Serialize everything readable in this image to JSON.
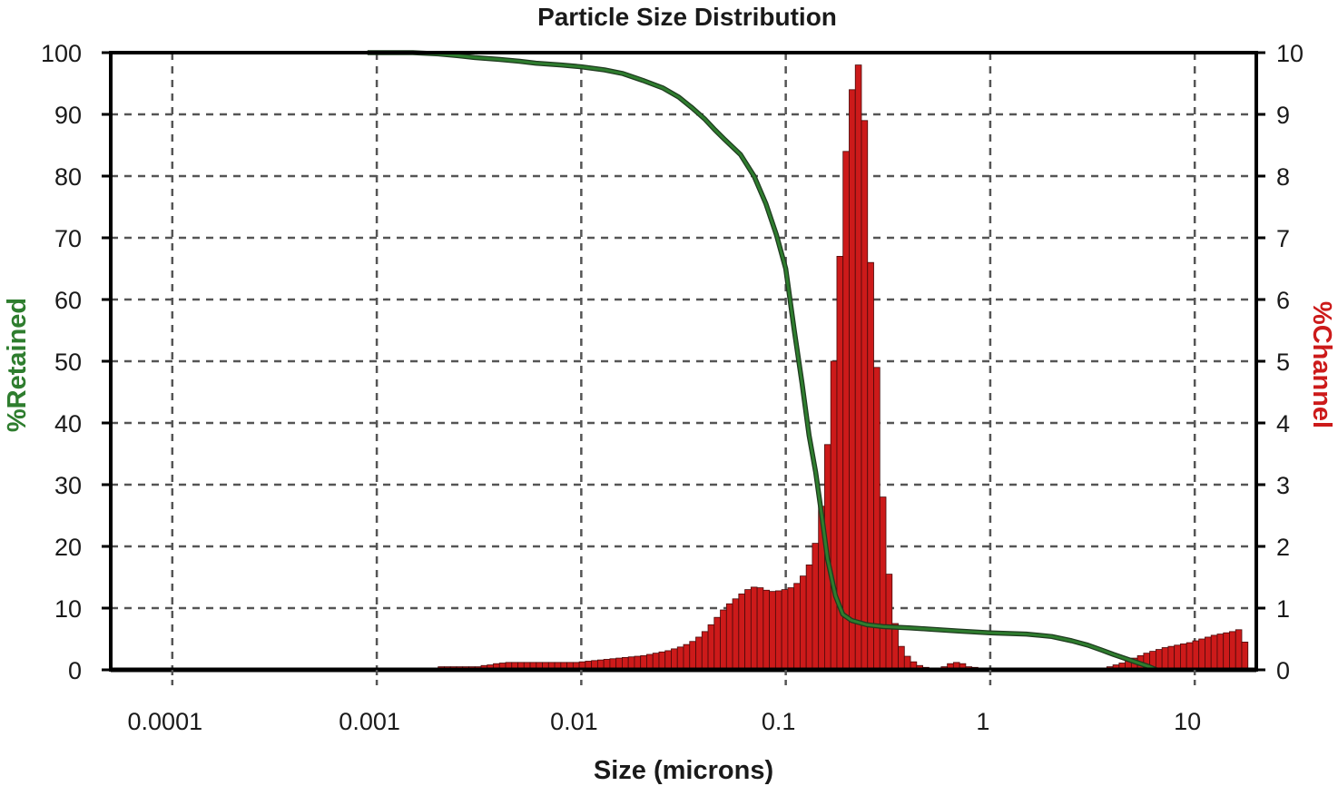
{
  "chart_data": {
    "type": "bar",
    "title": "Particle Size Distribution",
    "xlabel": "Size (microns)",
    "ylabel_left": "%Retained",
    "ylabel_right": "%Channel",
    "x_scale": "log",
    "xlim": [
      5e-05,
      20
    ],
    "ylim_left": [
      0,
      100
    ],
    "ylim_right": [
      0,
      10
    ],
    "x_ticks": [
      {
        "value": 0.0001,
        "label": "0.0001"
      },
      {
        "value": 0.001,
        "label": "0.001"
      },
      {
        "value": 0.01,
        "label": "0.01"
      },
      {
        "value": 0.1,
        "label": "0.1"
      },
      {
        "value": 1,
        "label": "1"
      },
      {
        "value": 10,
        "label": "10"
      }
    ],
    "y_left_ticks": [
      {
        "value": 0,
        "label": "0"
      },
      {
        "value": 10,
        "label": "10"
      },
      {
        "value": 20,
        "label": "20"
      },
      {
        "value": 30,
        "label": "30"
      },
      {
        "value": 40,
        "label": "40"
      },
      {
        "value": 50,
        "label": "50"
      },
      {
        "value": 60,
        "label": "60"
      },
      {
        "value": 70,
        "label": "70"
      },
      {
        "value": 80,
        "label": "80"
      },
      {
        "value": 90,
        "label": "90"
      },
      {
        "value": 100,
        "label": "100"
      }
    ],
    "y_right_ticks": [
      {
        "value": 0,
        "label": "0"
      },
      {
        "value": 1,
        "label": "1"
      },
      {
        "value": 2,
        "label": "2"
      },
      {
        "value": 3,
        "label": "3"
      },
      {
        "value": 4,
        "label": "4"
      },
      {
        "value": 5,
        "label": "5"
      },
      {
        "value": 6,
        "label": "6"
      },
      {
        "value": 7,
        "label": "7"
      },
      {
        "value": 8,
        "label": "8"
      },
      {
        "value": 9,
        "label": "9"
      },
      {
        "value": 10,
        "label": "10"
      }
    ],
    "grid": true,
    "colors": {
      "channel_bars": "#cc1a1a",
      "retained_line": "#2e7d2e",
      "left_axis_label": "#2e7d2e",
      "right_axis_label": "#cc1a1a"
    },
    "series": [
      {
        "axis": "right",
        "type": "bar",
        "x_log10_start": -3.0,
        "x_log10_step": 0.03,
        "values": [
          0.01,
          0.01,
          0.01,
          0.01,
          0.02,
          0.02,
          0.03,
          0.03,
          0.03,
          0.03,
          0.05,
          0.05,
          0.05,
          0.05,
          0.05,
          0.05,
          0.05,
          0.07,
          0.08,
          0.1,
          0.11,
          0.12,
          0.12,
          0.12,
          0.12,
          0.12,
          0.12,
          0.12,
          0.12,
          0.12,
          0.12,
          0.12,
          0.12,
          0.13,
          0.14,
          0.15,
          0.16,
          0.17,
          0.18,
          0.19,
          0.2,
          0.21,
          0.22,
          0.23,
          0.25,
          0.27,
          0.29,
          0.31,
          0.34,
          0.37,
          0.41,
          0.46,
          0.53,
          0.62,
          0.73,
          0.85,
          0.97,
          1.07,
          1.15,
          1.23,
          1.3,
          1.34,
          1.33,
          1.29,
          1.27,
          1.28,
          1.3,
          1.33,
          1.4,
          1.52,
          1.7,
          2.05,
          2.65,
          3.65,
          5.0,
          6.7,
          8.4,
          9.4,
          9.8,
          8.9,
          6.6,
          4.9,
          2.8,
          1.55,
          0.75,
          0.38,
          0.22,
          0.13,
          0.07,
          0.04,
          0.02,
          0.02,
          0.05,
          0.1,
          0.12,
          0.1,
          0.05,
          0.04,
          0.03,
          0.02,
          0.02,
          0.02,
          0.02,
          0.02,
          0.02,
          0.02,
          0.02,
          0.02,
          0.02,
          0.02,
          0.02,
          0.02,
          0.02,
          0.02,
          0.02,
          0.02,
          0.02,
          0.02,
          0.03,
          0.05,
          0.08,
          0.11,
          0.15,
          0.19,
          0.23,
          0.27,
          0.3,
          0.33,
          0.36,
          0.38,
          0.4,
          0.42,
          0.44,
          0.47,
          0.5,
          0.53,
          0.56,
          0.58,
          0.6,
          0.62,
          0.65,
          0.45,
          0.01
        ]
      },
      {
        "axis": "left",
        "type": "line",
        "points": [
          [
            0.0009,
            100
          ],
          [
            0.0015,
            100
          ],
          [
            0.002,
            99.8
          ],
          [
            0.0025,
            99.5
          ],
          [
            0.003,
            99.2
          ],
          [
            0.004,
            98.9
          ],
          [
            0.005,
            98.6
          ],
          [
            0.006,
            98.3
          ],
          [
            0.008,
            98.0
          ],
          [
            0.01,
            97.7
          ],
          [
            0.013,
            97.2
          ],
          [
            0.016,
            96.6
          ],
          [
            0.02,
            95.5
          ],
          [
            0.025,
            94.3
          ],
          [
            0.03,
            92.8
          ],
          [
            0.035,
            91.0
          ],
          [
            0.04,
            89.3
          ],
          [
            0.045,
            87.5
          ],
          [
            0.05,
            86.0
          ],
          [
            0.06,
            83.5
          ],
          [
            0.07,
            80.0
          ],
          [
            0.08,
            75.5
          ],
          [
            0.09,
            70.5
          ],
          [
            0.1,
            65.0
          ],
          [
            0.11,
            55.0
          ],
          [
            0.12,
            46.5
          ],
          [
            0.13,
            38.0
          ],
          [
            0.14,
            32.0
          ],
          [
            0.15,
            25.0
          ],
          [
            0.16,
            18.0
          ],
          [
            0.175,
            12.0
          ],
          [
            0.19,
            9.0
          ],
          [
            0.21,
            8.0
          ],
          [
            0.25,
            7.3
          ],
          [
            0.3,
            7.0
          ],
          [
            0.4,
            6.8
          ],
          [
            0.5,
            6.6
          ],
          [
            0.7,
            6.3
          ],
          [
            1.0,
            6.0
          ],
          [
            1.5,
            5.8
          ],
          [
            2.0,
            5.4
          ],
          [
            2.5,
            4.7
          ],
          [
            3.0,
            4.0
          ],
          [
            3.5,
            3.2
          ],
          [
            4.0,
            2.5
          ],
          [
            5.0,
            1.4
          ],
          [
            6.0,
            0.5
          ],
          [
            6.5,
            0.0
          ]
        ]
      }
    ]
  }
}
